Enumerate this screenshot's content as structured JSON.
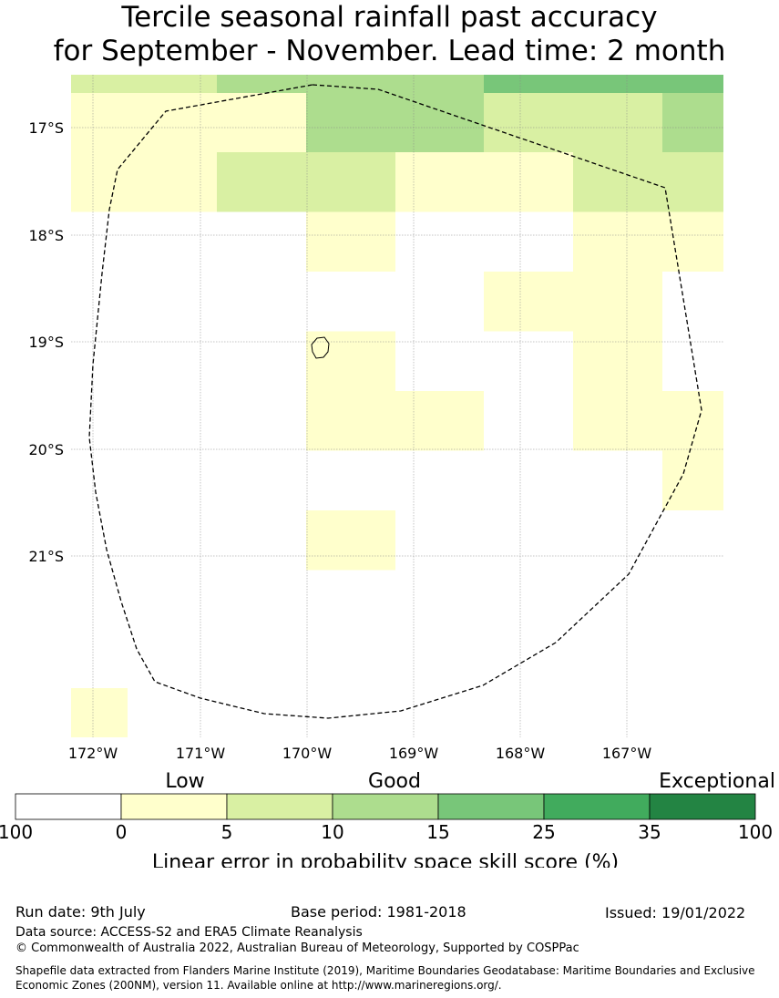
{
  "title": {
    "line1": "Tercile seasonal rainfall past accuracy",
    "line2": "for September - November. Lead time: 2 month"
  },
  "map": {
    "lat_labels": [
      "17°S",
      "18°S",
      "19°S",
      "20°S",
      "21°S"
    ],
    "lon_labels": [
      "172°W",
      "171°W",
      "170°W",
      "169°W",
      "168°W",
      "167°W"
    ],
    "cells": [
      {
        "row": 0,
        "col": 0,
        "cat": 1
      },
      {
        "row": 0,
        "col": 1,
        "cat": 2
      },
      {
        "row": 0,
        "col": 2,
        "cat": 2
      },
      {
        "row": 0,
        "col": 3,
        "cat": 2
      },
      {
        "row": 0,
        "col": 4,
        "cat": 3
      },
      {
        "row": 0,
        "col": 5,
        "cat": 3
      },
      {
        "row": 0,
        "col": 6,
        "cat": 3
      },
      {
        "row": 1,
        "col": 0,
        "cat": 0
      },
      {
        "row": 1,
        "col": 1,
        "cat": 0
      },
      {
        "row": 1,
        "col": 2,
        "cat": 2
      },
      {
        "row": 1,
        "col": 3,
        "cat": 2
      },
      {
        "row": 1,
        "col": 4,
        "cat": 1
      },
      {
        "row": 1,
        "col": 5,
        "cat": 1
      },
      {
        "row": 1,
        "col": 6,
        "cat": 2
      },
      {
        "row": 2,
        "col": 0,
        "cat": 0
      },
      {
        "row": 2,
        "col": 1,
        "cat": 1
      },
      {
        "row": 2,
        "col": 2,
        "cat": 1
      },
      {
        "row": 2,
        "col": 3,
        "cat": 0
      },
      {
        "row": 2,
        "col": 4,
        "cat": 0
      },
      {
        "row": 2,
        "col": 5,
        "cat": 1
      },
      {
        "row": 2,
        "col": 6,
        "cat": 1
      },
      {
        "row": 3,
        "col": 2,
        "cat": 0
      },
      {
        "row": 3,
        "col": 5,
        "cat": 0
      },
      {
        "row": 3,
        "col": 6,
        "cat": 0
      },
      {
        "row": 4,
        "col": 4,
        "cat": 0
      },
      {
        "row": 4,
        "col": 5,
        "cat": 0
      },
      {
        "row": 5,
        "col": 2,
        "cat": 0
      },
      {
        "row": 5,
        "col": 5,
        "cat": 0
      },
      {
        "row": 6,
        "col": 2,
        "cat": 0
      },
      {
        "row": 6,
        "col": 3,
        "cat": 0
      },
      {
        "row": 6,
        "col": 5,
        "cat": 0
      },
      {
        "row": 6,
        "col": 6,
        "cat": 0
      },
      {
        "row": 7,
        "col": 6,
        "cat": 0
      },
      {
        "row": 8,
        "col": 2,
        "cat": 0
      },
      {
        "row": 11,
        "col": 0,
        "cat": 0
      }
    ],
    "colors": {
      "boundary": "#000000",
      "gridline": "#888888"
    }
  },
  "legend": {
    "category_labels": [
      "Low",
      "Good",
      "Exceptional"
    ],
    "colors": [
      "#ffffff",
      "#ffffcc",
      "#d9f0a3",
      "#addd8e",
      "#78c679",
      "#41ab5d",
      "#238443"
    ],
    "tick_labels": [
      "100",
      "0",
      "5",
      "10",
      "15",
      "25",
      "35",
      "100"
    ],
    "axis_label": "Linear error in probability space skill score (%)"
  },
  "footer": {
    "run_date": "Run date: 9th July",
    "base_period": "Base period: 1981-2018",
    "issued": "Issued: 19/01/2022",
    "data_source": "Data source: ACCESS-S2 and ERA5 Climate Reanalysis",
    "copyright": "© Commonwealth of Australia 2022, Australian Bureau of Meteorology, Supported by COSPPac",
    "shapefile": "Shapefile data extracted from Flanders Marine Institute (2019), Maritime Boundaries Geodatabase: Maritime Boundaries and Exclusive Economic Zones (200NM), version 11. Available online at http://www.marineregions.org/."
  }
}
